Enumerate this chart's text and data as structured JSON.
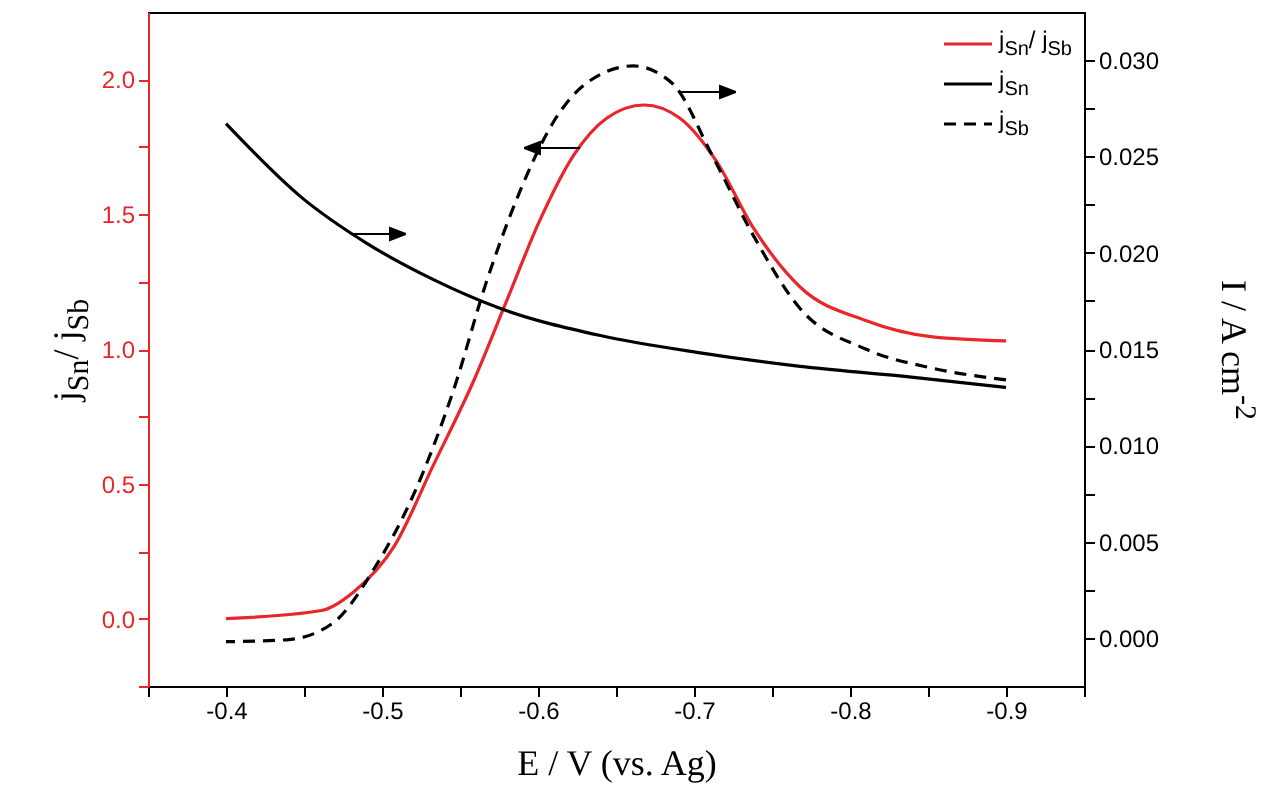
{
  "chart_data": {
    "type": "line",
    "xlabel": "E / V (vs. Ag)",
    "ylabel": "j$_{Sn}$/ j$_{Sb}$",
    "y2label": "I / A cm$^{-2}$",
    "legend": "top right",
    "xlim": [
      -0.35,
      -0.95
    ],
    "xticks": [
      {
        "value": -0.35,
        "label": null
      },
      -0.4,
      {
        "value": -0.45,
        "label": null
      },
      -0.5,
      {
        "value": -0.55,
        "label": null
      },
      -0.6,
      {
        "value": -0.65,
        "label": null
      },
      -0.7,
      {
        "value": -0.75,
        "label": null
      },
      -0.8,
      {
        "value": -0.85,
        "label": null
      },
      -0.9,
      {
        "value": -0.95,
        "label": null
      }
    ],
    "ylim": [
      -0.25,
      2.25
    ],
    "yticks": [
      {
        "value": -0.25,
        "label": null
      },
      {
        "value": 0,
        "label": "0.0"
      },
      {
        "value": 0.25,
        "label": null
      },
      0.5,
      {
        "value": 0.75,
        "label": null
      },
      {
        "value": 1,
        "label": "1.0"
      },
      {
        "value": 1.25,
        "label": null
      },
      1.5,
      {
        "value": 1.75,
        "label": null
      },
      {
        "value": 2,
        "label": "2.0"
      }
    ],
    "y2lim": [
      -0.0025,
      0.0325
    ],
    "y2ticks": [
      {
        "value": 0,
        "label": "0.000"
      },
      {
        "value": 0.0025,
        "label": null
      },
      0.005,
      {
        "value": 0.0075,
        "label": null
      },
      {
        "value": 0.01,
        "label": "0.010"
      },
      {
        "value": 0.0125,
        "label": null
      },
      0.015,
      {
        "value": 0.0175,
        "label": null
      },
      {
        "value": 0.02,
        "label": "0.020"
      },
      {
        "value": 0.0225,
        "label": null
      },
      0.025,
      {
        "value": 0.0275,
        "label": null
      },
      {
        "value": 0.03,
        "label": "0.030"
      }
    ],
    "series": [
      {
        "name": "j$_{Sn}$/ j$_{Sb}$",
        "color": "#e8262b",
        "line_style": "solid",
        "x": [
          -0.4,
          -0.461,
          -0.482,
          -0.508,
          -0.533,
          -0.559,
          -0.58,
          -0.601,
          -0.623,
          -0.644,
          -0.668,
          -0.691,
          -0.714,
          -0.738,
          -0.768,
          -0.81,
          -0.853,
          -0.9
        ],
        "values": [
          0.0,
          0.03,
          0.1,
          0.27,
          0.57,
          0.885,
          1.18,
          1.475,
          1.72,
          1.856,
          1.905,
          1.856,
          1.7,
          1.45,
          1.23,
          1.106,
          1.045,
          1.03
        ]
      },
      {
        "name": "j$_{Sn}$",
        "color": "#000000",
        "line_style": "solid",
        "axis": "y2",
        "x": [
          -0.4,
          -0.448,
          -0.49,
          -0.533,
          -0.576,
          -0.64,
          -0.704,
          -0.768,
          -0.832,
          -0.9
        ],
        "values": [
          0.0267,
          0.0229,
          0.0205,
          0.0186,
          0.0171,
          0.0157,
          0.0148,
          0.0141,
          0.0136,
          0.013
        ]
      },
      {
        "name": "j$_{Sb}$",
        "color": "#000000",
        "line_style": "dashed",
        "axis": "y2",
        "x": [
          -0.4,
          -0.439,
          -0.469,
          -0.495,
          -0.52,
          -0.546,
          -0.567,
          -0.589,
          -0.61,
          -0.631,
          -0.661,
          -0.686,
          -0.712,
          -0.738,
          -0.768,
          -0.81,
          -0.853,
          -0.9
        ],
        "values": [
          -0.0002,
          -0.0001,
          0.0008,
          0.0036,
          0.0074,
          0.0129,
          0.0185,
          0.0233,
          0.0268,
          0.0288,
          0.0297,
          0.0288,
          0.025,
          0.0209,
          0.0171,
          0.015,
          0.014,
          0.0134
        ]
      }
    ]
  }
}
